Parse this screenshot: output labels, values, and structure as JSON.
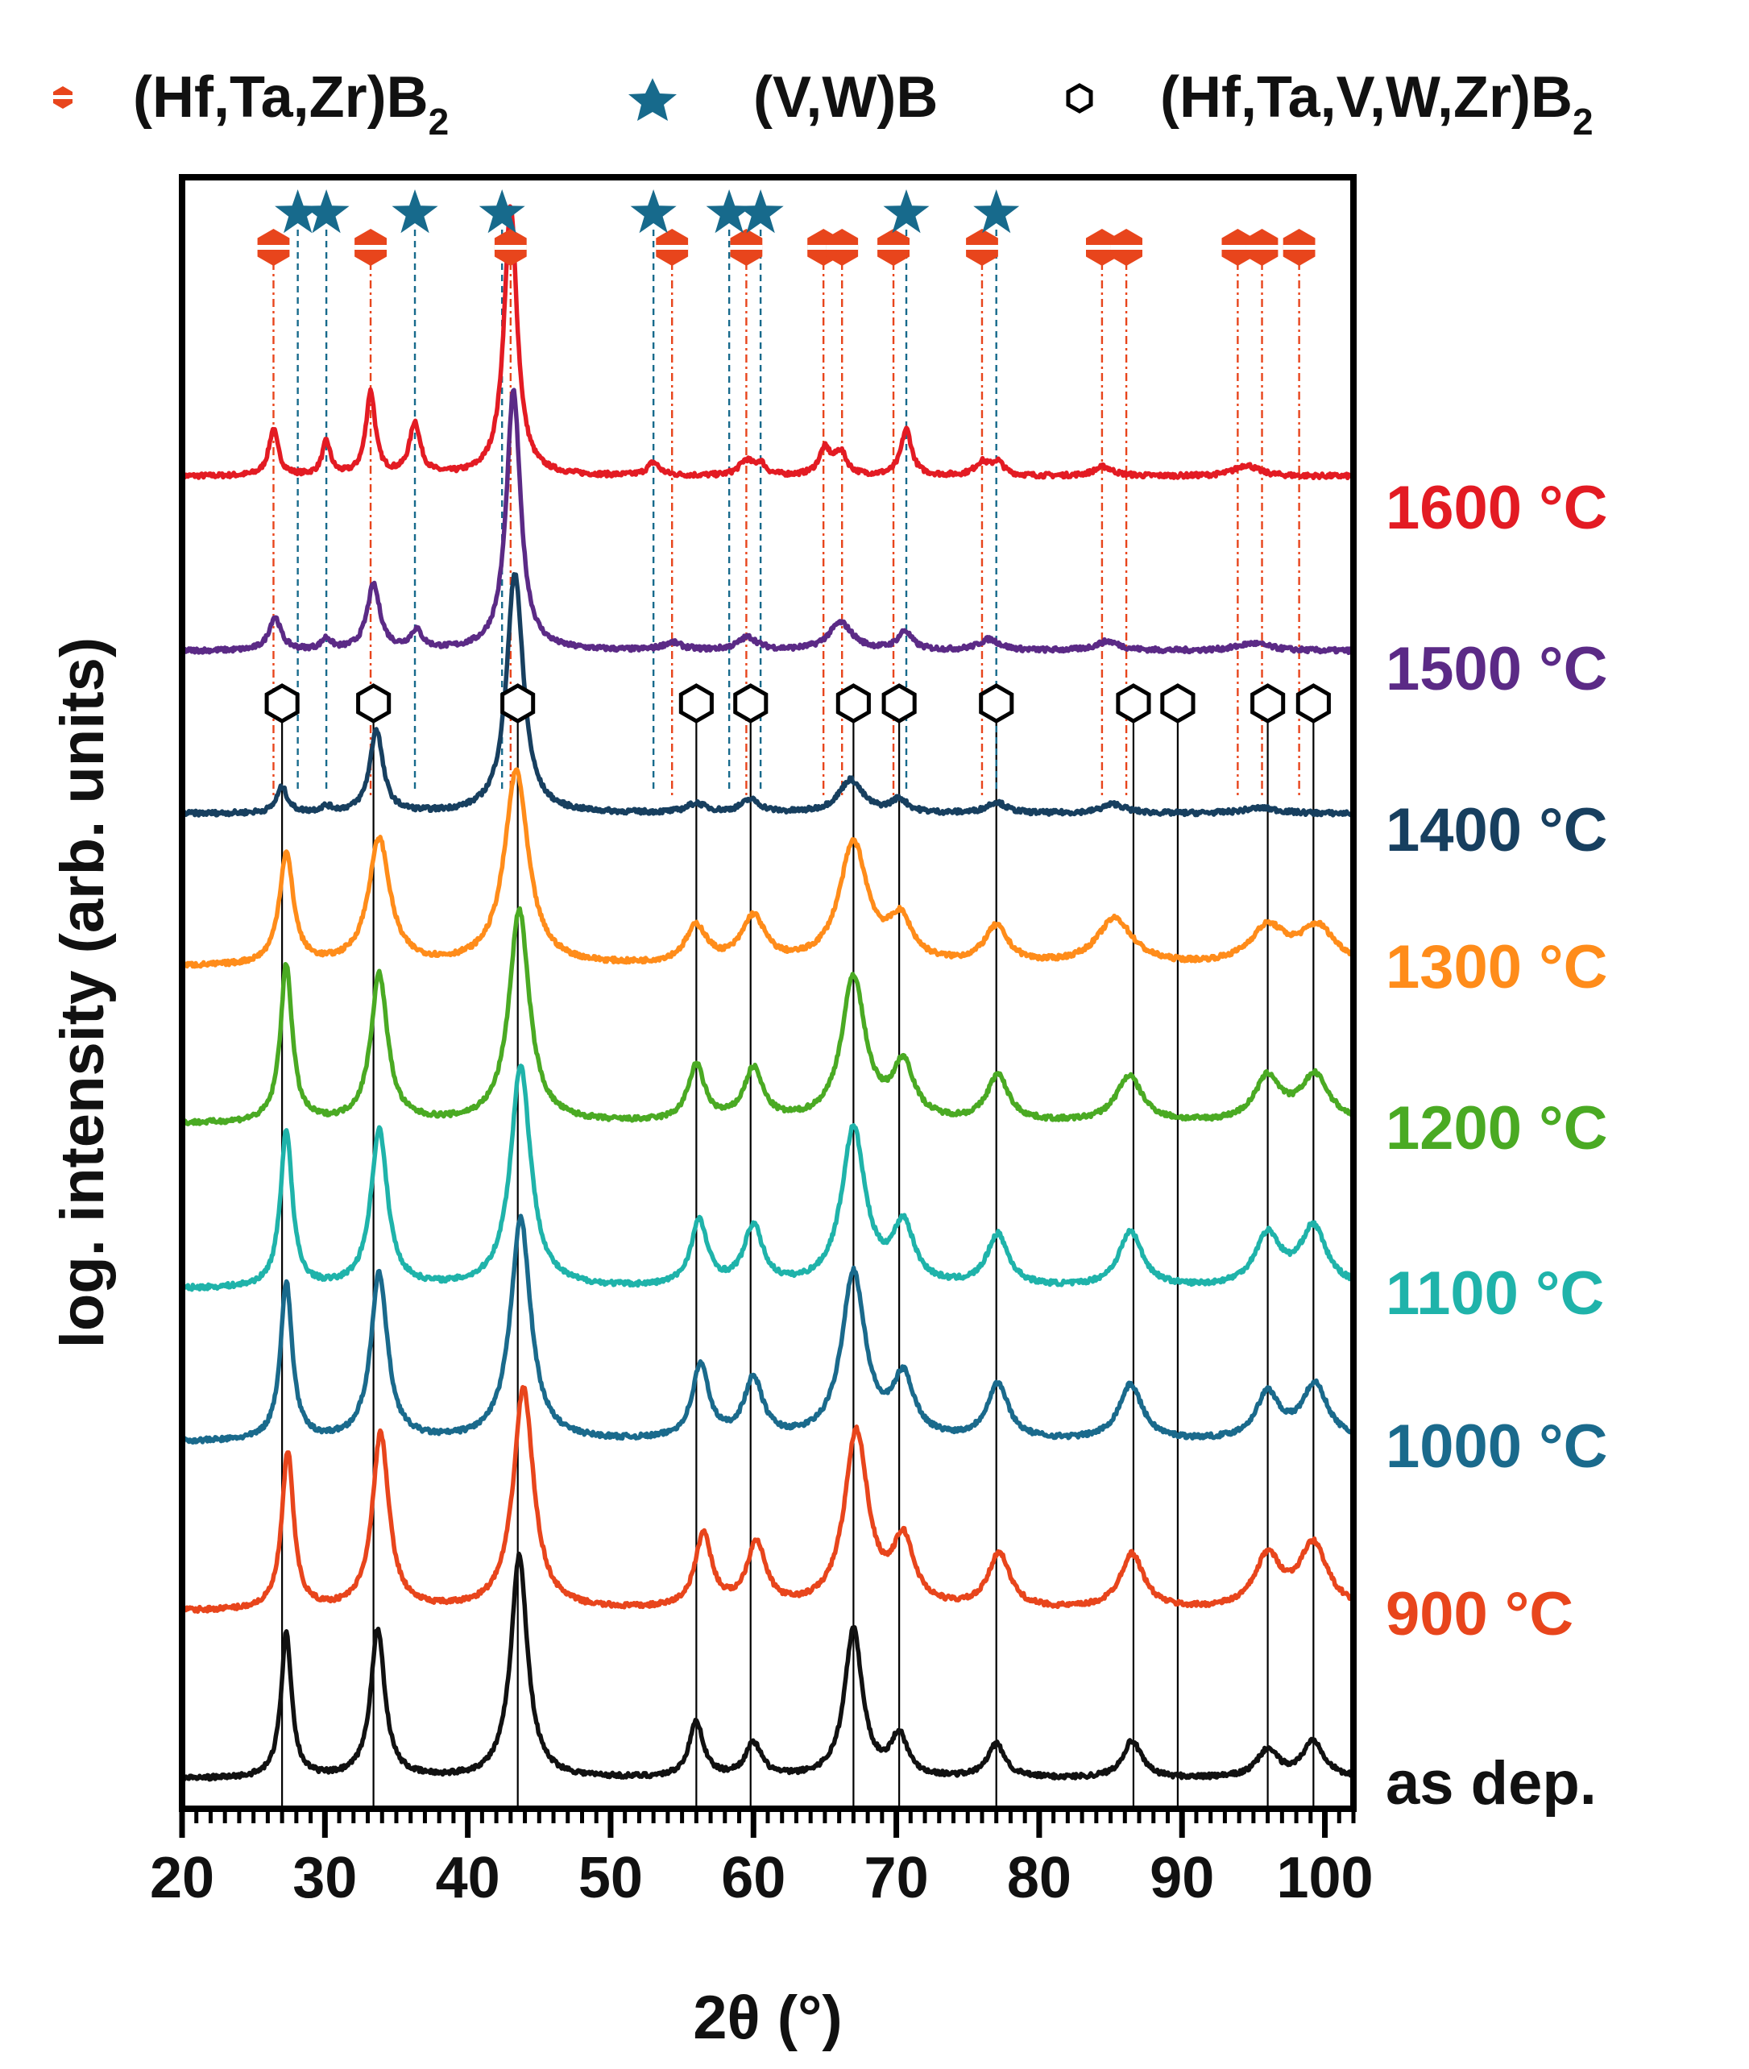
{
  "chart_data": {
    "type": "line",
    "title": "",
    "xlabel": "2θ (°)",
    "ylabel": "log. intensity (arb. units)",
    "xlim": [
      20,
      102
    ],
    "x_ticks": [
      20,
      30,
      40,
      50,
      60,
      70,
      80,
      90,
      100
    ],
    "x_tick_labels": [
      "20",
      "30",
      "40",
      "50",
      "60",
      "70",
      "80",
      "90",
      "100"
    ],
    "legend": [
      {
        "symbol": "hexagon-filled",
        "label": "(Hf,Ta,Zr)B",
        "sub": "2",
        "color": "#e8451c"
      },
      {
        "symbol": "star",
        "label": "(V,W)B",
        "sub": "",
        "color": "#176a8c"
      },
      {
        "symbol": "hexagon-open",
        "label": "(Hf,Ta,V,W,Zr)B",
        "sub": "2",
        "color": "#000000"
      }
    ],
    "reference_positions": {
      "HfTaZrB2": [
        26.4,
        33.2,
        43.0,
        54.3,
        59.5,
        64.9,
        66.2,
        69.8,
        76.0,
        84.4,
        86.1,
        93.9,
        95.6,
        98.2
      ],
      "VWB": [
        28.1,
        30.1,
        36.3,
        42.4,
        53.0,
        58.3,
        60.5,
        70.7,
        77.0
      ],
      "HfTaVWZrB2": [
        27.0,
        33.4,
        43.5,
        56.0,
        59.8,
        67.0,
        70.2,
        77.0,
        86.6,
        89.7,
        96.0,
        99.2
      ]
    },
    "series": [
      {
        "name": "1600 °C",
        "color": "#e31b23",
        "baseline": 0.06,
        "peaks": [
          [
            26.4,
            0.25,
            0.4
          ],
          [
            30.1,
            0.18,
            0.35
          ],
          [
            33.2,
            0.45,
            0.4
          ],
          [
            36.3,
            0.28,
            0.45
          ],
          [
            43.0,
            1.45,
            0.55
          ],
          [
            53.0,
            0.07,
            0.5
          ],
          [
            59.5,
            0.08,
            0.6
          ],
          [
            60.5,
            0.06,
            0.4
          ],
          [
            65.0,
            0.14,
            0.5
          ],
          [
            66.1,
            0.12,
            0.5
          ],
          [
            70.7,
            0.25,
            0.45
          ],
          [
            76.0,
            0.07,
            0.6
          ],
          [
            77.1,
            0.07,
            0.5
          ],
          [
            84.5,
            0.05,
            0.8
          ],
          [
            94.5,
            0.06,
            1.0
          ]
        ]
      },
      {
        "name": "1500 °C",
        "color": "#5b2a86",
        "baseline": 0.0,
        "peaks": [
          [
            26.5,
            0.18,
            0.5
          ],
          [
            30.1,
            0.06,
            0.4
          ],
          [
            33.4,
            0.35,
            0.55
          ],
          [
            36.4,
            0.1,
            0.5
          ],
          [
            43.2,
            1.4,
            0.6
          ],
          [
            54.3,
            0.04,
            0.8
          ],
          [
            59.6,
            0.07,
            0.8
          ],
          [
            66.1,
            0.15,
            1.0
          ],
          [
            70.6,
            0.1,
            0.6
          ],
          [
            76.5,
            0.06,
            0.9
          ],
          [
            84.8,
            0.05,
            1.0
          ],
          [
            95.0,
            0.04,
            1.4
          ]
        ]
      },
      {
        "name": "1400 °C",
        "color": "#173f5f",
        "baseline": 0.0,
        "peaks": [
          [
            27.0,
            0.14,
            0.45
          ],
          [
            30.1,
            0.03,
            0.5
          ],
          [
            33.6,
            0.45,
            0.55
          ],
          [
            43.3,
            1.3,
            0.7
          ],
          [
            56.0,
            0.05,
            0.8
          ],
          [
            59.8,
            0.07,
            0.8
          ],
          [
            66.8,
            0.18,
            1.0
          ],
          [
            70.2,
            0.07,
            0.7
          ],
          [
            77.0,
            0.06,
            0.8
          ],
          [
            85.2,
            0.05,
            1.0
          ],
          [
            95.5,
            0.03,
            1.5
          ]
        ]
      },
      {
        "name": "1300 °C",
        "color": "#ff8c1a",
        "baseline": 0.0,
        "peaks": [
          [
            27.3,
            0.6,
            0.6
          ],
          [
            33.8,
            0.68,
            0.9
          ],
          [
            43.4,
            1.05,
            1.0
          ],
          [
            56.0,
            0.2,
            0.9
          ],
          [
            60.0,
            0.25,
            1.0
          ],
          [
            67.0,
            0.65,
            1.2
          ],
          [
            70.3,
            0.22,
            1.0
          ],
          [
            77.0,
            0.2,
            1.0
          ],
          [
            85.3,
            0.25,
            1.5
          ],
          [
            96.0,
            0.2,
            1.5
          ],
          [
            99.5,
            0.2,
            1.5
          ]
        ]
      },
      {
        "name": "1200 °C",
        "color": "#4aaa23",
        "baseline": 0.0,
        "peaks": [
          [
            27.3,
            0.85,
            0.5
          ],
          [
            33.8,
            0.8,
            0.7
          ],
          [
            43.6,
            1.15,
            0.85
          ],
          [
            56.0,
            0.3,
            0.7
          ],
          [
            60.0,
            0.28,
            0.8
          ],
          [
            67.0,
            0.78,
            1.0
          ],
          [
            70.5,
            0.3,
            0.9
          ],
          [
            77.1,
            0.25,
            0.9
          ],
          [
            86.3,
            0.25,
            1.1
          ],
          [
            96.0,
            0.24,
            1.1
          ],
          [
            99.3,
            0.25,
            1.2
          ]
        ]
      },
      {
        "name": "1100 °C",
        "color": "#1fb3aa",
        "baseline": 0.0,
        "peaks": [
          [
            27.3,
            0.85,
            0.5
          ],
          [
            33.8,
            0.85,
            0.7
          ],
          [
            43.7,
            1.2,
            0.85
          ],
          [
            56.2,
            0.35,
            0.7
          ],
          [
            60.0,
            0.32,
            0.8
          ],
          [
            67.0,
            0.85,
            1.0
          ],
          [
            70.5,
            0.32,
            0.9
          ],
          [
            77.1,
            0.28,
            0.9
          ],
          [
            86.4,
            0.3,
            1.0
          ],
          [
            96.0,
            0.28,
            1.1
          ],
          [
            99.2,
            0.32,
            1.1
          ]
        ]
      },
      {
        "name": "1000 °C",
        "color": "#1a6a8c",
        "baseline": 0.0,
        "peaks": [
          [
            27.3,
            0.85,
            0.5
          ],
          [
            33.8,
            0.9,
            0.7
          ],
          [
            43.7,
            1.2,
            0.85
          ],
          [
            56.3,
            0.4,
            0.7
          ],
          [
            60.0,
            0.32,
            0.8
          ],
          [
            67.0,
            0.9,
            1.0
          ],
          [
            70.5,
            0.32,
            0.9
          ],
          [
            77.1,
            0.3,
            0.9
          ],
          [
            86.4,
            0.3,
            1.0
          ],
          [
            96.0,
            0.25,
            1.0
          ],
          [
            99.3,
            0.3,
            1.1
          ]
        ]
      },
      {
        "name": "900 °C",
        "color": "#e8451c",
        "baseline": 0.0,
        "peaks": [
          [
            27.4,
            0.85,
            0.5
          ],
          [
            33.9,
            0.95,
            0.7
          ],
          [
            43.9,
            1.2,
            0.85
          ],
          [
            56.5,
            0.4,
            0.7
          ],
          [
            60.2,
            0.35,
            0.8
          ],
          [
            67.2,
            0.95,
            1.0
          ],
          [
            70.5,
            0.35,
            0.9
          ],
          [
            77.2,
            0.3,
            0.9
          ],
          [
            86.5,
            0.3,
            1.0
          ],
          [
            96.0,
            0.28,
            1.1
          ],
          [
            99.2,
            0.35,
            1.2
          ]
        ]
      },
      {
        "name": "as dep.",
        "color": "#111111",
        "baseline": 0.0,
        "peaks": [
          [
            27.3,
            0.78,
            0.45
          ],
          [
            33.7,
            0.8,
            0.6
          ],
          [
            43.6,
            1.2,
            0.7
          ],
          [
            56.0,
            0.3,
            0.6
          ],
          [
            60.0,
            0.18,
            0.7
          ],
          [
            67.0,
            0.8,
            0.75
          ],
          [
            70.2,
            0.22,
            0.7
          ],
          [
            77.0,
            0.18,
            0.75
          ],
          [
            86.5,
            0.2,
            0.8
          ],
          [
            96.0,
            0.15,
            0.9
          ],
          [
            99.2,
            0.2,
            0.9
          ]
        ]
      }
    ]
  }
}
